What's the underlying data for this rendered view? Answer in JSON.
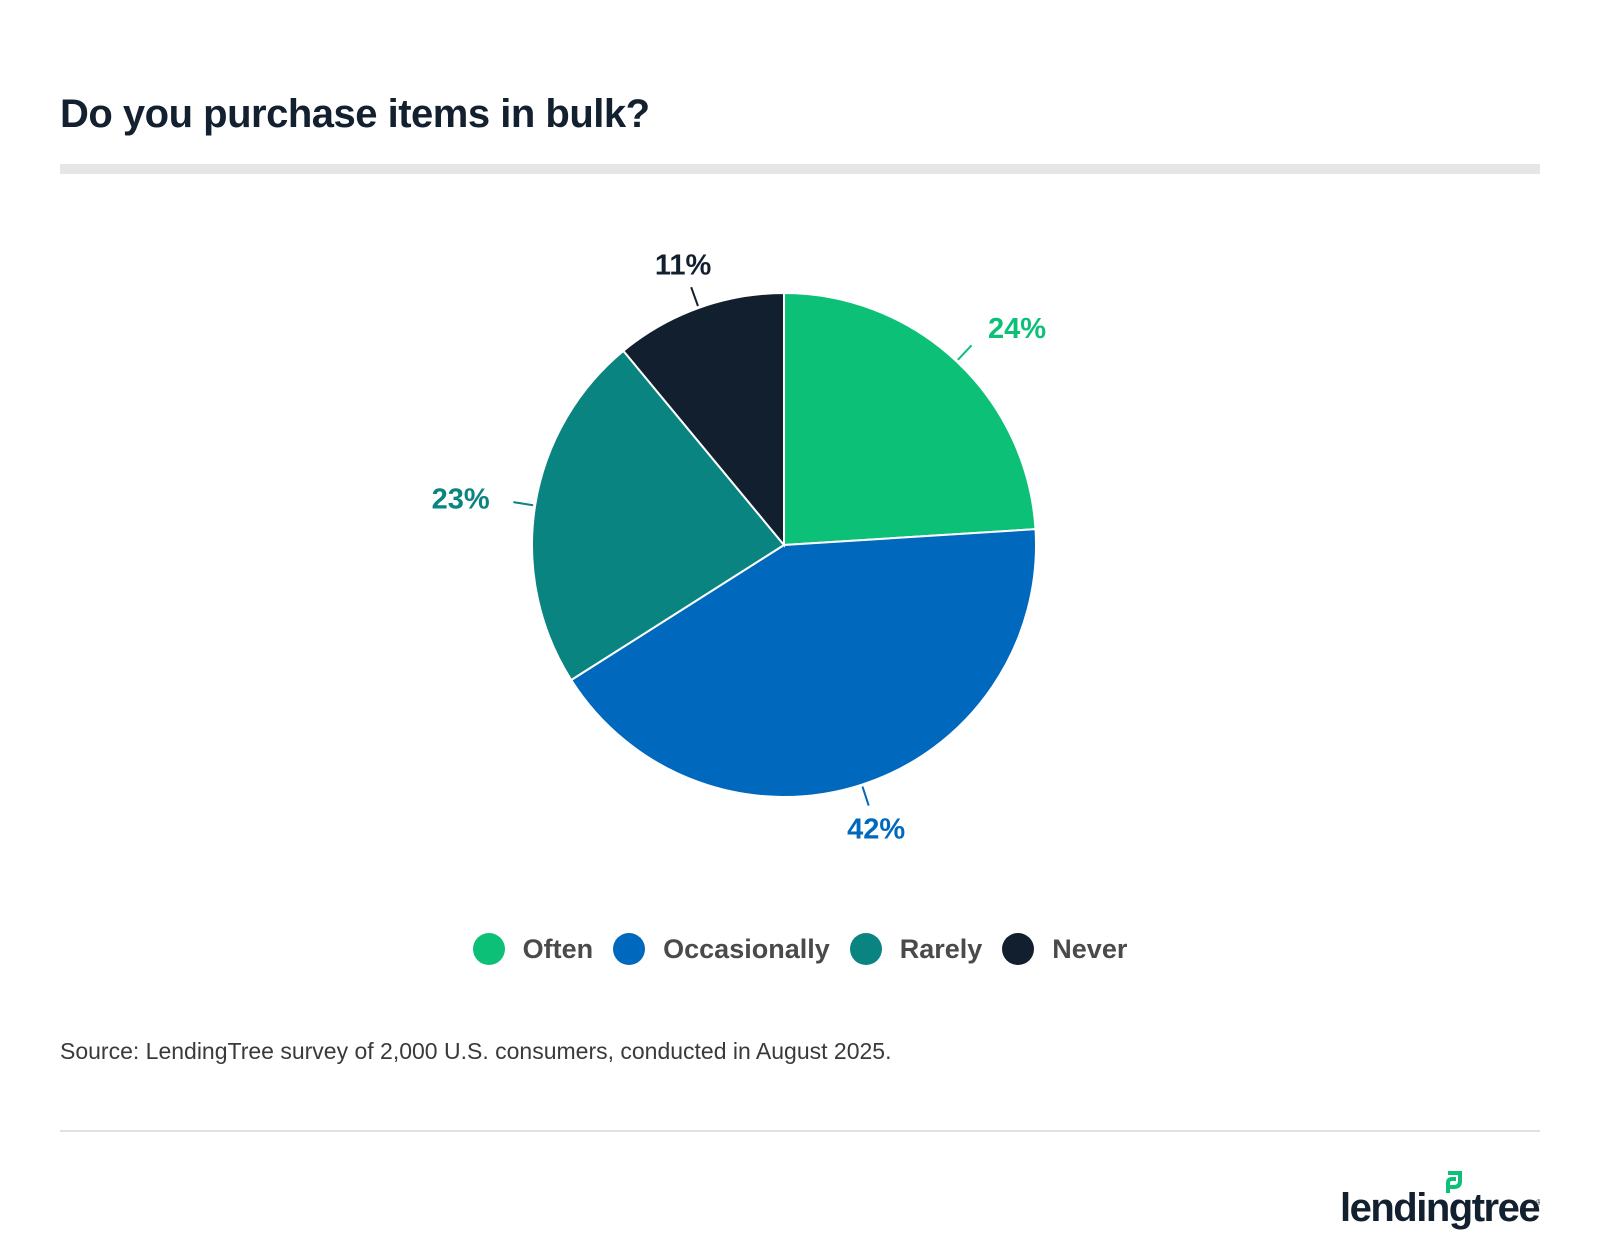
{
  "title": "Do you purchase items in bulk?",
  "source": "Source: LendingTree survey of 2,000 U.S. consumers, conducted in August 2025.",
  "logo_text": "lendingtree",
  "chart_data": {
    "type": "pie",
    "title": "Do you purchase items in bulk?",
    "slices": [
      {
        "label": "Often",
        "value": 24,
        "display": "24%",
        "color": "#0cc177"
      },
      {
        "label": "Occasionally",
        "value": 42,
        "display": "42%",
        "color": "#0068bd"
      },
      {
        "label": "Rarely",
        "value": 23,
        "display": "23%",
        "color": "#0a8480"
      },
      {
        "label": "Never",
        "value": 11,
        "display": "11%",
        "color": "#121f2e"
      }
    ],
    "legend_position": "bottom"
  }
}
